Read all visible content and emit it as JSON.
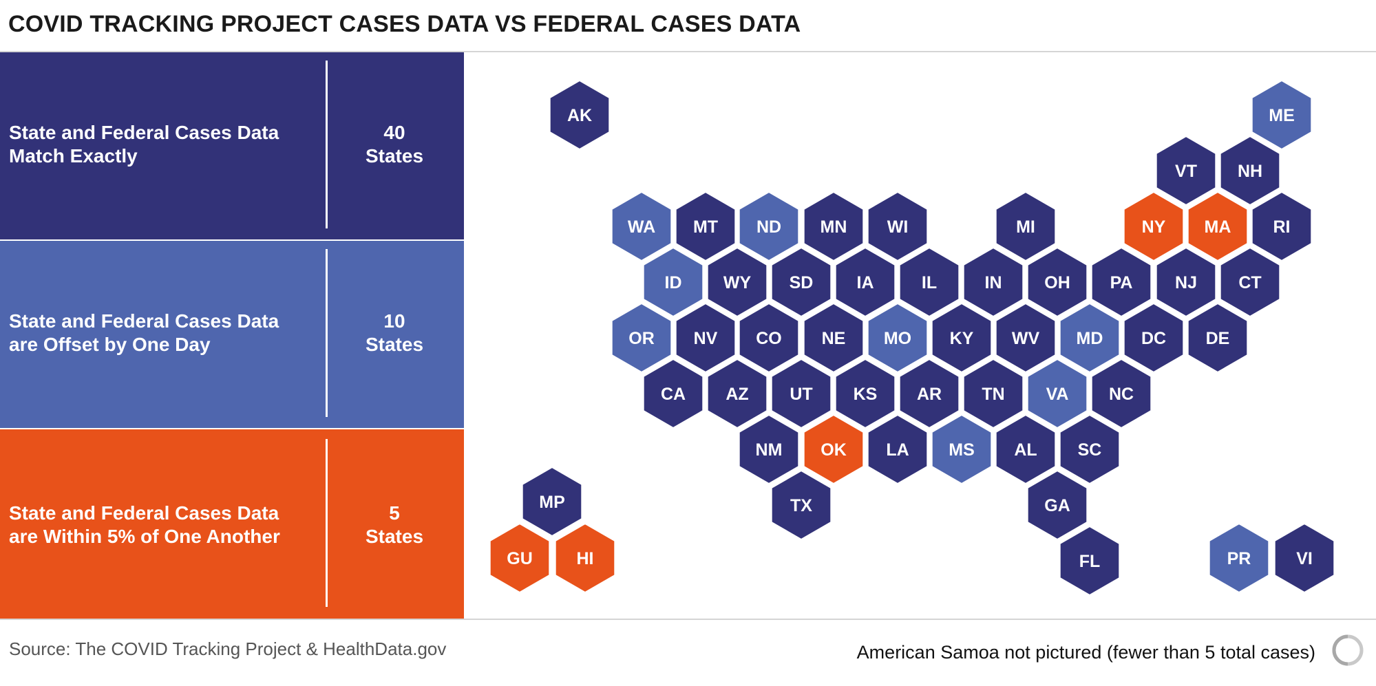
{
  "title": "COVID TRACKING PROJECT CASES DATA VS FEDERAL CASES DATA",
  "colors": {
    "match": "#323278",
    "offset": "#4f66ae",
    "within": "#e8521a"
  },
  "legend": [
    {
      "category": "match",
      "label": "State and Federal Cases Data Match Exactly",
      "count": "40 States"
    },
    {
      "category": "offset",
      "label": "State and Federal Cases Data are Offset by One Day",
      "count": "10 States"
    },
    {
      "category": "within",
      "label": "State and Federal Cases Data are Within 5% of One Another",
      "count": "5 States"
    }
  ],
  "map_data": {
    "type": "hex-tile-map",
    "tiles": [
      {
        "code": "AK",
        "category": "match"
      },
      {
        "code": "ME",
        "category": "offset"
      },
      {
        "code": "VT",
        "category": "match"
      },
      {
        "code": "NH",
        "category": "match"
      },
      {
        "code": "WA",
        "category": "offset"
      },
      {
        "code": "MT",
        "category": "match"
      },
      {
        "code": "ND",
        "category": "offset"
      },
      {
        "code": "MN",
        "category": "match"
      },
      {
        "code": "WI",
        "category": "match"
      },
      {
        "code": "MI",
        "category": "match"
      },
      {
        "code": "NY",
        "category": "within"
      },
      {
        "code": "MA",
        "category": "within"
      },
      {
        "code": "RI",
        "category": "match"
      },
      {
        "code": "ID",
        "category": "offset"
      },
      {
        "code": "WY",
        "category": "match"
      },
      {
        "code": "SD",
        "category": "match"
      },
      {
        "code": "IA",
        "category": "match"
      },
      {
        "code": "IL",
        "category": "match"
      },
      {
        "code": "IN",
        "category": "match"
      },
      {
        "code": "OH",
        "category": "match"
      },
      {
        "code": "PA",
        "category": "match"
      },
      {
        "code": "NJ",
        "category": "match"
      },
      {
        "code": "CT",
        "category": "match"
      },
      {
        "code": "OR",
        "category": "offset"
      },
      {
        "code": "NV",
        "category": "match"
      },
      {
        "code": "CO",
        "category": "match"
      },
      {
        "code": "NE",
        "category": "match"
      },
      {
        "code": "MO",
        "category": "offset"
      },
      {
        "code": "KY",
        "category": "match"
      },
      {
        "code": "WV",
        "category": "match"
      },
      {
        "code": "MD",
        "category": "offset"
      },
      {
        "code": "DC",
        "category": "match"
      },
      {
        "code": "DE",
        "category": "match"
      },
      {
        "code": "CA",
        "category": "match"
      },
      {
        "code": "AZ",
        "category": "match"
      },
      {
        "code": "UT",
        "category": "match"
      },
      {
        "code": "KS",
        "category": "match"
      },
      {
        "code": "AR",
        "category": "match"
      },
      {
        "code": "TN",
        "category": "match"
      },
      {
        "code": "VA",
        "category": "offset"
      },
      {
        "code": "NC",
        "category": "match"
      },
      {
        "code": "NM",
        "category": "match"
      },
      {
        "code": "OK",
        "category": "within"
      },
      {
        "code": "LA",
        "category": "match"
      },
      {
        "code": "MS",
        "category": "offset"
      },
      {
        "code": "AL",
        "category": "match"
      },
      {
        "code": "SC",
        "category": "match"
      },
      {
        "code": "TX",
        "category": "match"
      },
      {
        "code": "GA",
        "category": "match"
      },
      {
        "code": "FL",
        "category": "match"
      },
      {
        "code": "MP",
        "category": "match"
      },
      {
        "code": "GU",
        "category": "within"
      },
      {
        "code": "HI",
        "category": "within"
      },
      {
        "code": "PR",
        "category": "offset"
      },
      {
        "code": "VI",
        "category": "match"
      }
    ]
  },
  "source": "Source: The COVID Tracking Project & HealthData.gov",
  "note": "American Samoa not pictured (fewer than 5 total cases)"
}
